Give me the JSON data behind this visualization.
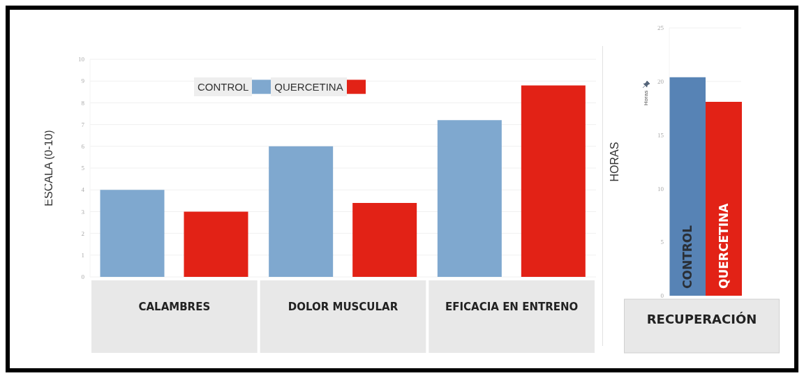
{
  "chart_data": [
    {
      "type": "bar",
      "ylabel": "ESCALA (0-10)",
      "categories": [
        "CALAMBRES",
        "DOLOR MUSCULAR",
        "EFICACIA EN ENTRENO"
      ],
      "series": [
        {
          "name": "CONTROL",
          "color": "#7fa8cf",
          "values": [
            4.0,
            6.0,
            7.2
          ]
        },
        {
          "name": "QUERCETINA",
          "color": "#e22216",
          "values": [
            3.0,
            3.4,
            8.8
          ]
        }
      ],
      "ylim": [
        0,
        10
      ],
      "yticks": [
        0,
        1,
        2,
        3,
        4,
        5,
        6,
        7,
        8,
        9,
        10
      ],
      "grid": "y",
      "legend": "top"
    },
    {
      "type": "bar",
      "ylabel": "HORAS",
      "annotations": [
        "Horas"
      ],
      "categories": [
        "RECUPERACIÓN"
      ],
      "series": [
        {
          "name": "CONTROL",
          "color": "#5783b5",
          "values": [
            20.4
          ]
        },
        {
          "name": "QUERCETINA",
          "color": "#e22216",
          "values": [
            18.1
          ]
        }
      ],
      "ylim": [
        0,
        25
      ],
      "yticks": [
        0,
        5,
        10,
        15,
        20,
        25
      ],
      "grid": "y",
      "legend": false
    }
  ]
}
